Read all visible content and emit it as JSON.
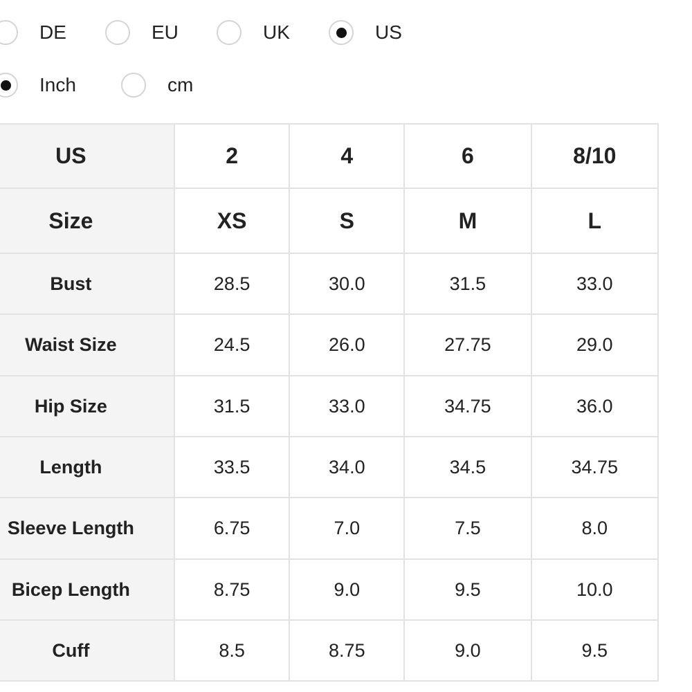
{
  "unit_systems": [
    {
      "label": "DE",
      "selected": false
    },
    {
      "label": "EU",
      "selected": false
    },
    {
      "label": "UK",
      "selected": false
    },
    {
      "label": "US",
      "selected": true
    }
  ],
  "measure_units": [
    {
      "label": "Inch",
      "selected": true
    },
    {
      "label": "cm",
      "selected": false
    }
  ],
  "table": {
    "rows": [
      [
        "US",
        "2",
        "4",
        "6",
        "8/10"
      ],
      [
        "Size",
        "XS",
        "S",
        "M",
        "L"
      ],
      [
        "Bust",
        "28.5",
        "30.0",
        "31.5",
        "33.0"
      ],
      [
        "Waist Size",
        "24.5",
        "26.0",
        "27.75",
        "29.0"
      ],
      [
        "Hip Size",
        "31.5",
        "33.0",
        "34.75",
        "36.0"
      ],
      [
        "Length",
        "33.5",
        "34.0",
        "34.5",
        "34.75"
      ],
      [
        "Sleeve Length",
        "6.75",
        "7.0",
        "7.5",
        "8.0"
      ],
      [
        "Bicep Length",
        "8.75",
        "9.0",
        "9.5",
        "10.0"
      ],
      [
        "Cuff",
        "8.5",
        "8.75",
        "9.0",
        "9.5"
      ]
    ]
  }
}
